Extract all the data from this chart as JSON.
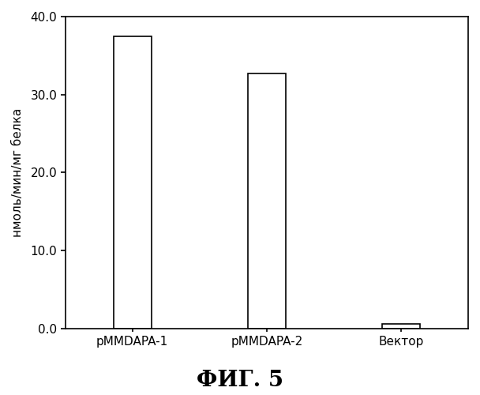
{
  "categories": [
    "pMMDAPA-1",
    "pMMDAPA-2",
    "Вектор"
  ],
  "values": [
    37.5,
    32.7,
    0.6
  ],
  "bar_color": "#ffffff",
  "bar_edgecolor": "#000000",
  "bar_linewidth": 1.2,
  "ylabel": "нмоль/мин/мг белка",
  "ylim": [
    0,
    40.0
  ],
  "yticks": [
    0.0,
    10.0,
    20.0,
    30.0,
    40.0
  ],
  "figure_title": "ФИГ. 5",
  "title_fontsize": 20,
  "ylabel_fontsize": 11,
  "tick_fontsize": 11,
  "xlabel_fontsize": 11,
  "background_color": "#ffffff",
  "bar_width": 0.28,
  "xlim": [
    -0.5,
    2.5
  ]
}
